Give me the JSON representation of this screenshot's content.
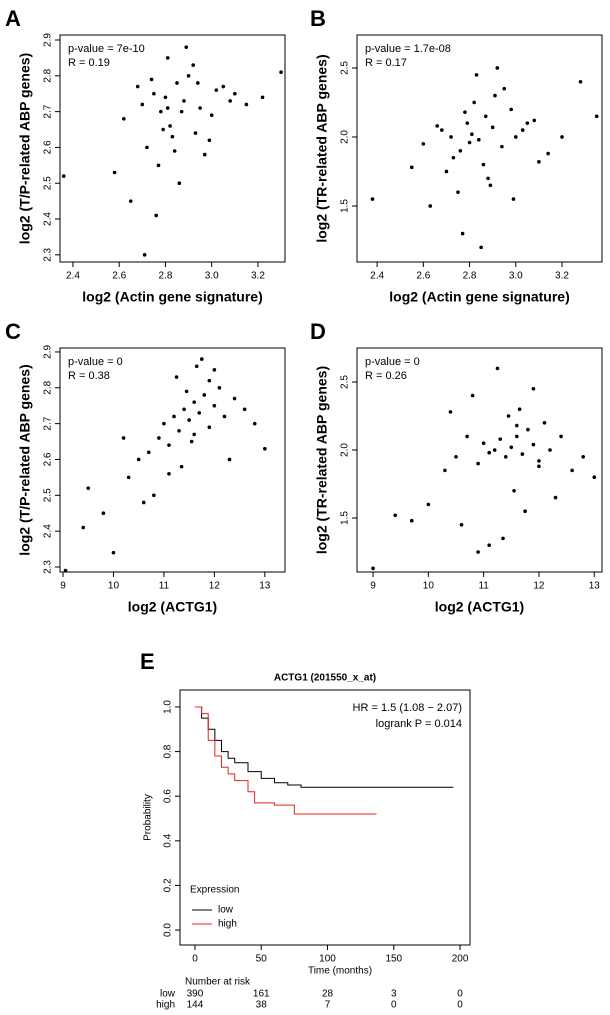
{
  "chart_data": [
    {
      "type": "scatter",
      "label": "A",
      "xlabel": "log2 (Actin gene signature)",
      "ylabel": "log2 (T/P-related ABP genes)",
      "annotations": [
        "p-value = 7e-10",
        "R = 0.19"
      ],
      "color": "#000000",
      "xlim": [
        2.344,
        3.317
      ],
      "ylim": [
        2.28,
        2.914
      ],
      "xticks": [
        2.4,
        2.6,
        2.8,
        {
          "value": 3,
          "label": "3.0"
        },
        3.2
      ],
      "yticks": [
        2.3,
        2.4,
        2.5,
        2.6,
        2.7,
        2.8,
        2.9
      ],
      "x": [
        2.62,
        2.7,
        2.75,
        2.78,
        2.8,
        2.82,
        2.85,
        2.88,
        2.9,
        2.95,
        3.0,
        3.05,
        3.1,
        3.15,
        3.22,
        3.3,
        2.72,
        2.77,
        2.83,
        2.86,
        2.92,
        2.68,
        2.74,
        2.79,
        2.81,
        2.87,
        2.93,
        2.97,
        3.02,
        2.65,
        2.76,
        2.84,
        2.89,
        2.99,
        3.08,
        2.58,
        2.71,
        2.81,
        2.36,
        2.94
      ],
      "y": [
        2.68,
        2.72,
        2.75,
        2.7,
        2.74,
        2.66,
        2.78,
        2.73,
        2.8,
        2.71,
        2.69,
        2.77,
        2.75,
        2.72,
        2.74,
        2.81,
        2.6,
        2.55,
        2.63,
        2.5,
        2.83,
        2.77,
        2.79,
        2.65,
        2.85,
        2.7,
        2.64,
        2.58,
        2.76,
        2.45,
        2.41,
        2.59,
        2.88,
        2.62,
        2.73,
        2.53,
        2.3,
        2.71,
        2.52,
        2.78
      ]
    },
    {
      "type": "scatter",
      "label": "B",
      "xlabel": "log2 (Actin gene signature)",
      "ylabel": "log2 (TR-related ABP genes)",
      "annotations": [
        "p-value = 1.7e-08",
        "R = 0.17"
      ],
      "color": "#000000",
      "xlim": [
        2.313,
        3.373
      ],
      "ylim": [
        1.094,
        2.739
      ],
      "xticks": [
        2.4,
        2.6,
        2.8,
        {
          "value": 3,
          "label": "3.0"
        },
        3.2
      ],
      "yticks": [
        1.5,
        {
          "value": 2,
          "label": "2.0"
        },
        2.5
      ],
      "x": [
        2.6,
        2.68,
        2.72,
        2.76,
        2.79,
        2.81,
        2.84,
        2.87,
        2.9,
        2.94,
        2.98,
        3.03,
        3.08,
        3.14,
        3.2,
        3.28,
        2.7,
        2.75,
        2.82,
        2.86,
        2.91,
        2.66,
        2.73,
        2.78,
        2.8,
        2.88,
        2.95,
        2.99,
        3.05,
        2.63,
        2.77,
        2.83,
        2.89,
        3.0,
        3.1,
        2.55,
        2.38,
        2.85,
        3.35,
        2.92
      ],
      "y": [
        1.95,
        2.05,
        2.0,
        1.9,
        2.1,
        2.02,
        1.98,
        2.15,
        2.07,
        1.93,
        2.2,
        2.05,
        2.12,
        1.88,
        2.0,
        2.4,
        1.75,
        1.6,
        2.25,
        1.8,
        2.3,
        2.08,
        1.85,
        2.18,
        1.96,
        1.7,
        2.35,
        1.55,
        2.1,
        1.5,
        1.3,
        2.45,
        1.65,
        2.0,
        1.82,
        1.78,
        1.55,
        1.2,
        2.15,
        2.5
      ]
    },
    {
      "type": "scatter",
      "label": "C",
      "xlabel": "log2 (ACTG1)",
      "ylabel": "log2 (T/P-related ABP genes)",
      "annotations": [
        "p-value = 0",
        "R = 0.38"
      ],
      "color": "#000000",
      "xlim": [
        8.94,
        13.4
      ],
      "ylim": [
        2.286,
        2.911
      ],
      "xticks": [
        9,
        10,
        11,
        12,
        13
      ],
      "yticks": [
        2.3,
        2.4,
        2.5,
        2.6,
        2.7,
        2.8,
        2.9
      ],
      "x": [
        9.05,
        9.5,
        9.8,
        10.0,
        10.3,
        10.5,
        10.7,
        10.9,
        11.0,
        11.1,
        11.2,
        11.3,
        11.4,
        11.5,
        11.6,
        11.7,
        11.8,
        11.9,
        12.0,
        12.1,
        12.2,
        12.4,
        12.6,
        12.8,
        13.0,
        11.25,
        11.45,
        11.55,
        11.65,
        11.75,
        11.35,
        10.8,
        11.9,
        12.3,
        10.6,
        11.1,
        11.6,
        12.0,
        9.4,
        10.2
      ],
      "y": [
        2.29,
        2.52,
        2.45,
        2.34,
        2.55,
        2.6,
        2.62,
        2.66,
        2.7,
        2.64,
        2.72,
        2.68,
        2.74,
        2.71,
        2.76,
        2.73,
        2.78,
        2.69,
        2.75,
        2.8,
        2.72,
        2.77,
        2.74,
        2.7,
        2.63,
        2.83,
        2.79,
        2.65,
        2.86,
        2.88,
        2.58,
        2.5,
        2.82,
        2.6,
        2.48,
        2.56,
        2.67,
        2.85,
        2.41,
        2.66
      ]
    },
    {
      "type": "scatter",
      "label": "D",
      "xlabel": "log2 (ACTG1)",
      "ylabel": "log2 (TR-related ABP genes)",
      "annotations": [
        "p-value = 0",
        "R = 0.26"
      ],
      "color": "#000000",
      "xlim": [
        8.71,
        13.14
      ],
      "ylim": [
        1.103,
        2.75
      ],
      "xticks": [
        9,
        10,
        11,
        12,
        13
      ],
      "yticks": [
        1.5,
        {
          "value": 2,
          "label": "2.0"
        },
        2.5
      ],
      "x": [
        9.0,
        9.4,
        9.7,
        10.0,
        10.3,
        10.5,
        10.7,
        10.9,
        11.0,
        11.1,
        11.2,
        11.3,
        11.4,
        11.5,
        11.6,
        11.7,
        11.8,
        11.9,
        12.0,
        12.1,
        12.2,
        12.4,
        12.6,
        12.8,
        13.0,
        11.25,
        11.45,
        11.55,
        11.65,
        11.75,
        11.35,
        10.8,
        11.9,
        12.3,
        10.6,
        11.1,
        11.6,
        12.0,
        10.9,
        10.4
      ],
      "y": [
        1.13,
        1.52,
        1.48,
        1.6,
        1.85,
        1.95,
        2.1,
        1.9,
        2.05,
        1.98,
        2.0,
        2.08,
        1.95,
        2.02,
        2.1,
        1.97,
        2.15,
        2.04,
        1.92,
        2.2,
        2.0,
        2.1,
        1.85,
        1.95,
        1.8,
        2.6,
        2.25,
        1.7,
        2.3,
        1.55,
        1.35,
        2.4,
        2.45,
        1.65,
        1.45,
        1.3,
        2.18,
        1.88,
        1.25,
        2.28
      ]
    },
    {
      "type": "km",
      "label": "E",
      "title": "ACTG1 (201550_x_at)",
      "xlabel": "Time (months)",
      "ylabel": "Probability",
      "annotations": [
        "HR = 1.5 (1.08 − 2.07)",
        "logrank P = 0.014"
      ],
      "xlim": [
        -11.3,
        207.5
      ],
      "ylim": [
        -0.067,
        1.076
      ],
      "xticks": [
        0,
        50,
        100,
        150,
        200
      ],
      "yticks": [
        {
          "value": 0,
          "label": "0.0"
        },
        0.2,
        0.4,
        0.6,
        0.8,
        {
          "value": 1,
          "label": "1.0"
        }
      ],
      "legend_title": "Expression",
      "series": [
        {
          "name": "low",
          "color": "#000000",
          "x": [
            0,
            5,
            10,
            15,
            20,
            25,
            30,
            40,
            50,
            60,
            70,
            80,
            195
          ],
          "values": [
            1,
            0.95,
            0.9,
            0.85,
            0.8,
            0.77,
            0.75,
            0.71,
            0.68,
            0.66,
            0.65,
            0.64,
            0.64
          ]
        },
        {
          "name": "high",
          "color": "#e8241b",
          "x": [
            0,
            5,
            10,
            15,
            20,
            25,
            30,
            40,
            45,
            60,
            75,
            137
          ],
          "values": [
            1,
            0.97,
            0.85,
            0.78,
            0.73,
            0.7,
            0.67,
            0.62,
            0.57,
            0.56,
            0.52,
            0.52
          ]
        }
      ],
      "risk_table": {
        "title": "Number at risk",
        "rows": [
          {
            "name": "low",
            "values": [
              390,
              161,
              28,
              3,
              0
            ]
          },
          {
            "name": "high",
            "values": [
              144,
              38,
              7,
              0,
              0
            ]
          }
        ]
      }
    }
  ]
}
